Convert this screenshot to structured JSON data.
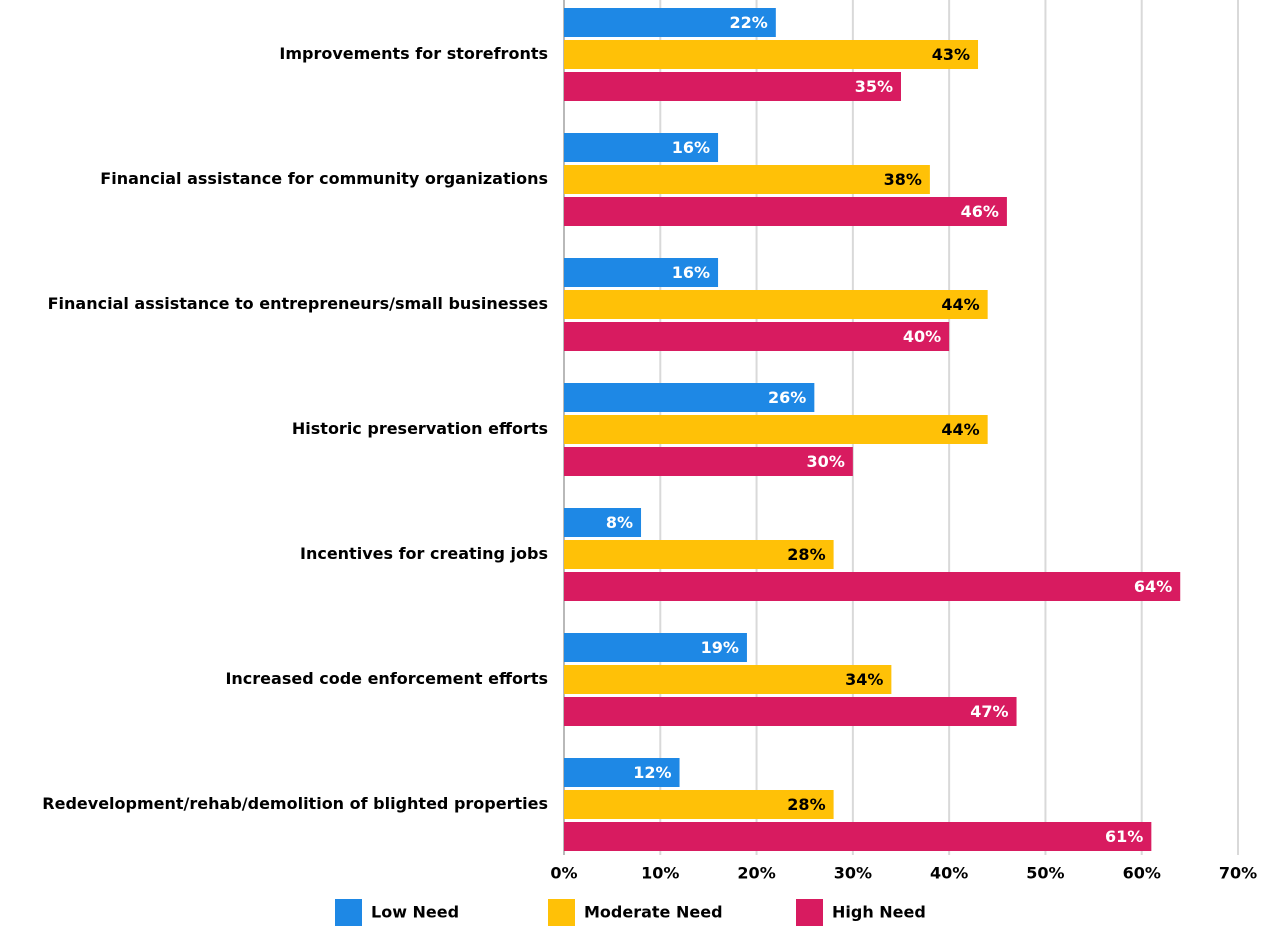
{
  "chart_data": {
    "type": "hbar",
    "categories": [
      "Improvements for storefronts",
      "Financial assistance for community organizations",
      "Financial assistance to entrepreneurs/small businesses",
      "Historic preservation efforts",
      "Incentives for creating jobs",
      "Increased code enforcement efforts",
      "Redevelopment/rehab/demolition of blighted properties"
    ],
    "series": [
      {
        "name": "Low Need",
        "color": "#1e88e5",
        "label_color": "#ffffff",
        "values": [
          22,
          16,
          16,
          26,
          8,
          19,
          12
        ],
        "value_labels": [
          "22%",
          "16%",
          "16%",
          "26%",
          "8%",
          "19%",
          "12%"
        ]
      },
      {
        "name": "Moderate Need",
        "color": "#ffc107",
        "label_color": "#000000",
        "values": [
          43,
          38,
          44,
          44,
          28,
          34,
          28
        ],
        "value_labels": [
          "43%",
          "38%",
          "44%",
          "44%",
          "28%",
          "34%",
          "28%"
        ]
      },
      {
        "name": "High Need",
        "color": "#d81b60",
        "label_color": "#ffffff",
        "values": [
          35,
          46,
          40,
          30,
          64,
          47,
          61
        ],
        "value_labels": [
          "35%",
          "46%",
          "40%",
          "30%",
          "64%",
          "47%",
          "61%"
        ]
      }
    ],
    "xlim": [
      0,
      70
    ],
    "xticks": [
      {
        "value": 0,
        "label": "0%"
      },
      {
        "value": 10,
        "label": "10%"
      },
      {
        "value": 20,
        "label": "20%"
      },
      {
        "value": 30,
        "label": "30%"
      },
      {
        "value": 40,
        "label": "40%"
      },
      {
        "value": 50,
        "label": "50%"
      },
      {
        "value": 60,
        "label": "60%"
      },
      {
        "value": 70,
        "label": "70%"
      }
    ],
    "grid": true,
    "legend": "bottom"
  }
}
